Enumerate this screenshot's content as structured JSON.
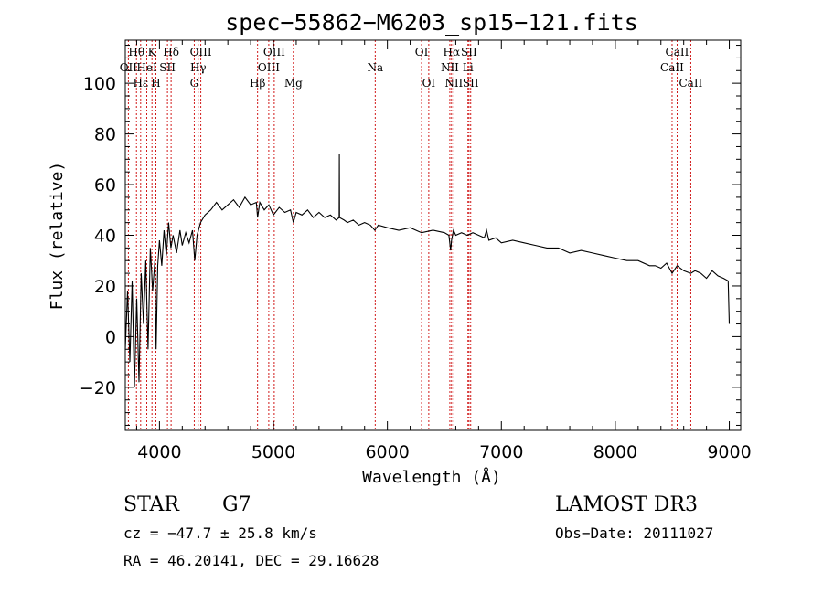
{
  "chart_data": {
    "type": "line",
    "title": "spec−55862−M6203_sp15−121.fits",
    "xlabel": "Wavelength (Å)",
    "ylabel": "Flux (relative)",
    "xlim": [
      3700,
      9100
    ],
    "ylim": [
      -37,
      117
    ],
    "x_ticks": [
      4000,
      5000,
      6000,
      7000,
      8000,
      9000
    ],
    "x_tick_labels": [
      "4000",
      "5000",
      "6000",
      "7000",
      "8000",
      "9000"
    ],
    "y_ticks": [
      -20,
      0,
      20,
      40,
      60,
      80,
      100
    ],
    "y_tick_labels": [
      "−20",
      "0",
      "20",
      "40",
      "60",
      "80",
      "100"
    ],
    "spectrum": [
      [
        3700,
        -5
      ],
      [
        3720,
        18
      ],
      [
        3740,
        -10
      ],
      [
        3760,
        22
      ],
      [
        3780,
        -20
      ],
      [
        3800,
        15
      ],
      [
        3820,
        -18
      ],
      [
        3840,
        25
      ],
      [
        3860,
        5
      ],
      [
        3880,
        30
      ],
      [
        3900,
        -5
      ],
      [
        3920,
        35
      ],
      [
        3940,
        18
      ],
      [
        3960,
        30
      ],
      [
        3970,
        -5
      ],
      [
        3985,
        28
      ],
      [
        4000,
        38
      ],
      [
        4020,
        28
      ],
      [
        4040,
        42
      ],
      [
        4060,
        32
      ],
      [
        4080,
        45
      ],
      [
        4100,
        35
      ],
      [
        4120,
        40
      ],
      [
        4150,
        33
      ],
      [
        4180,
        42
      ],
      [
        4200,
        36
      ],
      [
        4230,
        41
      ],
      [
        4260,
        37
      ],
      [
        4290,
        42
      ],
      [
        4310,
        30
      ],
      [
        4330,
        40
      ],
      [
        4360,
        45
      ],
      [
        4400,
        48
      ],
      [
        4450,
        50
      ],
      [
        4500,
        53
      ],
      [
        4550,
        50
      ],
      [
        4600,
        52
      ],
      [
        4650,
        54
      ],
      [
        4700,
        51
      ],
      [
        4750,
        55
      ],
      [
        4800,
        52
      ],
      [
        4850,
        53
      ],
      [
        4861,
        47
      ],
      [
        4880,
        53
      ],
      [
        4920,
        50
      ],
      [
        4960,
        52
      ],
      [
        5000,
        48
      ],
      [
        5050,
        51
      ],
      [
        5100,
        49
      ],
      [
        5150,
        50
      ],
      [
        5175,
        45
      ],
      [
        5200,
        49
      ],
      [
        5250,
        48
      ],
      [
        5300,
        50
      ],
      [
        5350,
        47
      ],
      [
        5400,
        49
      ],
      [
        5450,
        47
      ],
      [
        5500,
        48
      ],
      [
        5550,
        46
      ],
      [
        5577,
        47
      ],
      [
        5578,
        72
      ],
      [
        5580,
        47
      ],
      [
        5620,
        46
      ],
      [
        5650,
        45
      ],
      [
        5700,
        46
      ],
      [
        5750,
        44
      ],
      [
        5800,
        45
      ],
      [
        5850,
        44
      ],
      [
        5890,
        42
      ],
      [
        5920,
        44
      ],
      [
        6000,
        43
      ],
      [
        6100,
        42
      ],
      [
        6200,
        43
      ],
      [
        6300,
        41
      ],
      [
        6400,
        42
      ],
      [
        6500,
        41
      ],
      [
        6540,
        40
      ],
      [
        6555,
        34
      ],
      [
        6563,
        38
      ],
      [
        6580,
        42
      ],
      [
        6600,
        40
      ],
      [
        6650,
        41
      ],
      [
        6700,
        40
      ],
      [
        6750,
        41
      ],
      [
        6800,
        40
      ],
      [
        6850,
        39
      ],
      [
        6870,
        42
      ],
      [
        6890,
        38
      ],
      [
        6950,
        39
      ],
      [
        7000,
        37
      ],
      [
        7100,
        38
      ],
      [
        7200,
        37
      ],
      [
        7300,
        36
      ],
      [
        7400,
        35
      ],
      [
        7500,
        35
      ],
      [
        7600,
        33
      ],
      [
        7700,
        34
      ],
      [
        7800,
        33
      ],
      [
        7900,
        32
      ],
      [
        8000,
        31
      ],
      [
        8100,
        30
      ],
      [
        8200,
        30
      ],
      [
        8300,
        28
      ],
      [
        8350,
        28
      ],
      [
        8400,
        27
      ],
      [
        8450,
        29
      ],
      [
        8498,
        25
      ],
      [
        8542,
        28
      ],
      [
        8600,
        26
      ],
      [
        8662,
        25
      ],
      [
        8700,
        26
      ],
      [
        8750,
        25
      ],
      [
        8800,
        23
      ],
      [
        8850,
        26
      ],
      [
        8900,
        24
      ],
      [
        8950,
        23
      ],
      [
        8990,
        22
      ],
      [
        9000,
        5
      ]
    ],
    "lines": [
      {
        "label": "Hθ",
        "x": 3798,
        "row": 0
      },
      {
        "label": "K",
        "x": 3934,
        "row": 0
      },
      {
        "label": "Hδ",
        "x": 4102,
        "row": 0
      },
      {
        "label": "OIII",
        "x": 4363,
        "row": 0
      },
      {
        "label": "OIII",
        "x": 5007,
        "row": 0
      },
      {
        "label": "OI",
        "x": 6300,
        "row": 0
      },
      {
        "label": "Hα",
        "x": 6563,
        "row": 0
      },
      {
        "label": "SII",
        "x": 6716,
        "row": 0
      },
      {
        "label": "CaII",
        "x": 8542,
        "row": 0
      },
      {
        "label": "OII",
        "x": 3727,
        "row": 1
      },
      {
        "label": "HeI",
        "x": 3889,
        "row": 1
      },
      {
        "label": "SII",
        "x": 4070,
        "row": 1
      },
      {
        "label": "Hγ",
        "x": 4340,
        "row": 1
      },
      {
        "label": "OIII",
        "x": 4959,
        "row": 1
      },
      {
        "label": "Na",
        "x": 5893,
        "row": 1
      },
      {
        "label": "NII",
        "x": 6548,
        "row": 1
      },
      {
        "label": "Li",
        "x": 6707,
        "row": 1
      },
      {
        "label": "CaII",
        "x": 8498,
        "row": 1
      },
      {
        "label": "Hε",
        "x": 3835,
        "row": 2
      },
      {
        "label": "H",
        "x": 3969,
        "row": 2
      },
      {
        "label": "G",
        "x": 4305,
        "row": 2
      },
      {
        "label": "Hβ",
        "x": 4861,
        "row": 2
      },
      {
        "label": "Mg",
        "x": 5175,
        "row": 2
      },
      {
        "label": "OI",
        "x": 6363,
        "row": 2
      },
      {
        "label": "NII",
        "x": 6583,
        "row": 2
      },
      {
        "label": "SII",
        "x": 6731,
        "row": 2
      },
      {
        "label": "CaII",
        "x": 8662,
        "row": 2
      }
    ]
  },
  "info": {
    "class_label": "STAR",
    "subclass": "G7",
    "survey": "LAMOST DR3",
    "redshift": "cz = −47.7 ± 25.8 km/s",
    "obs_date": "Obs−Date: 20111027",
    "coords": "RA =  46.20141, DEC =  29.16628"
  }
}
